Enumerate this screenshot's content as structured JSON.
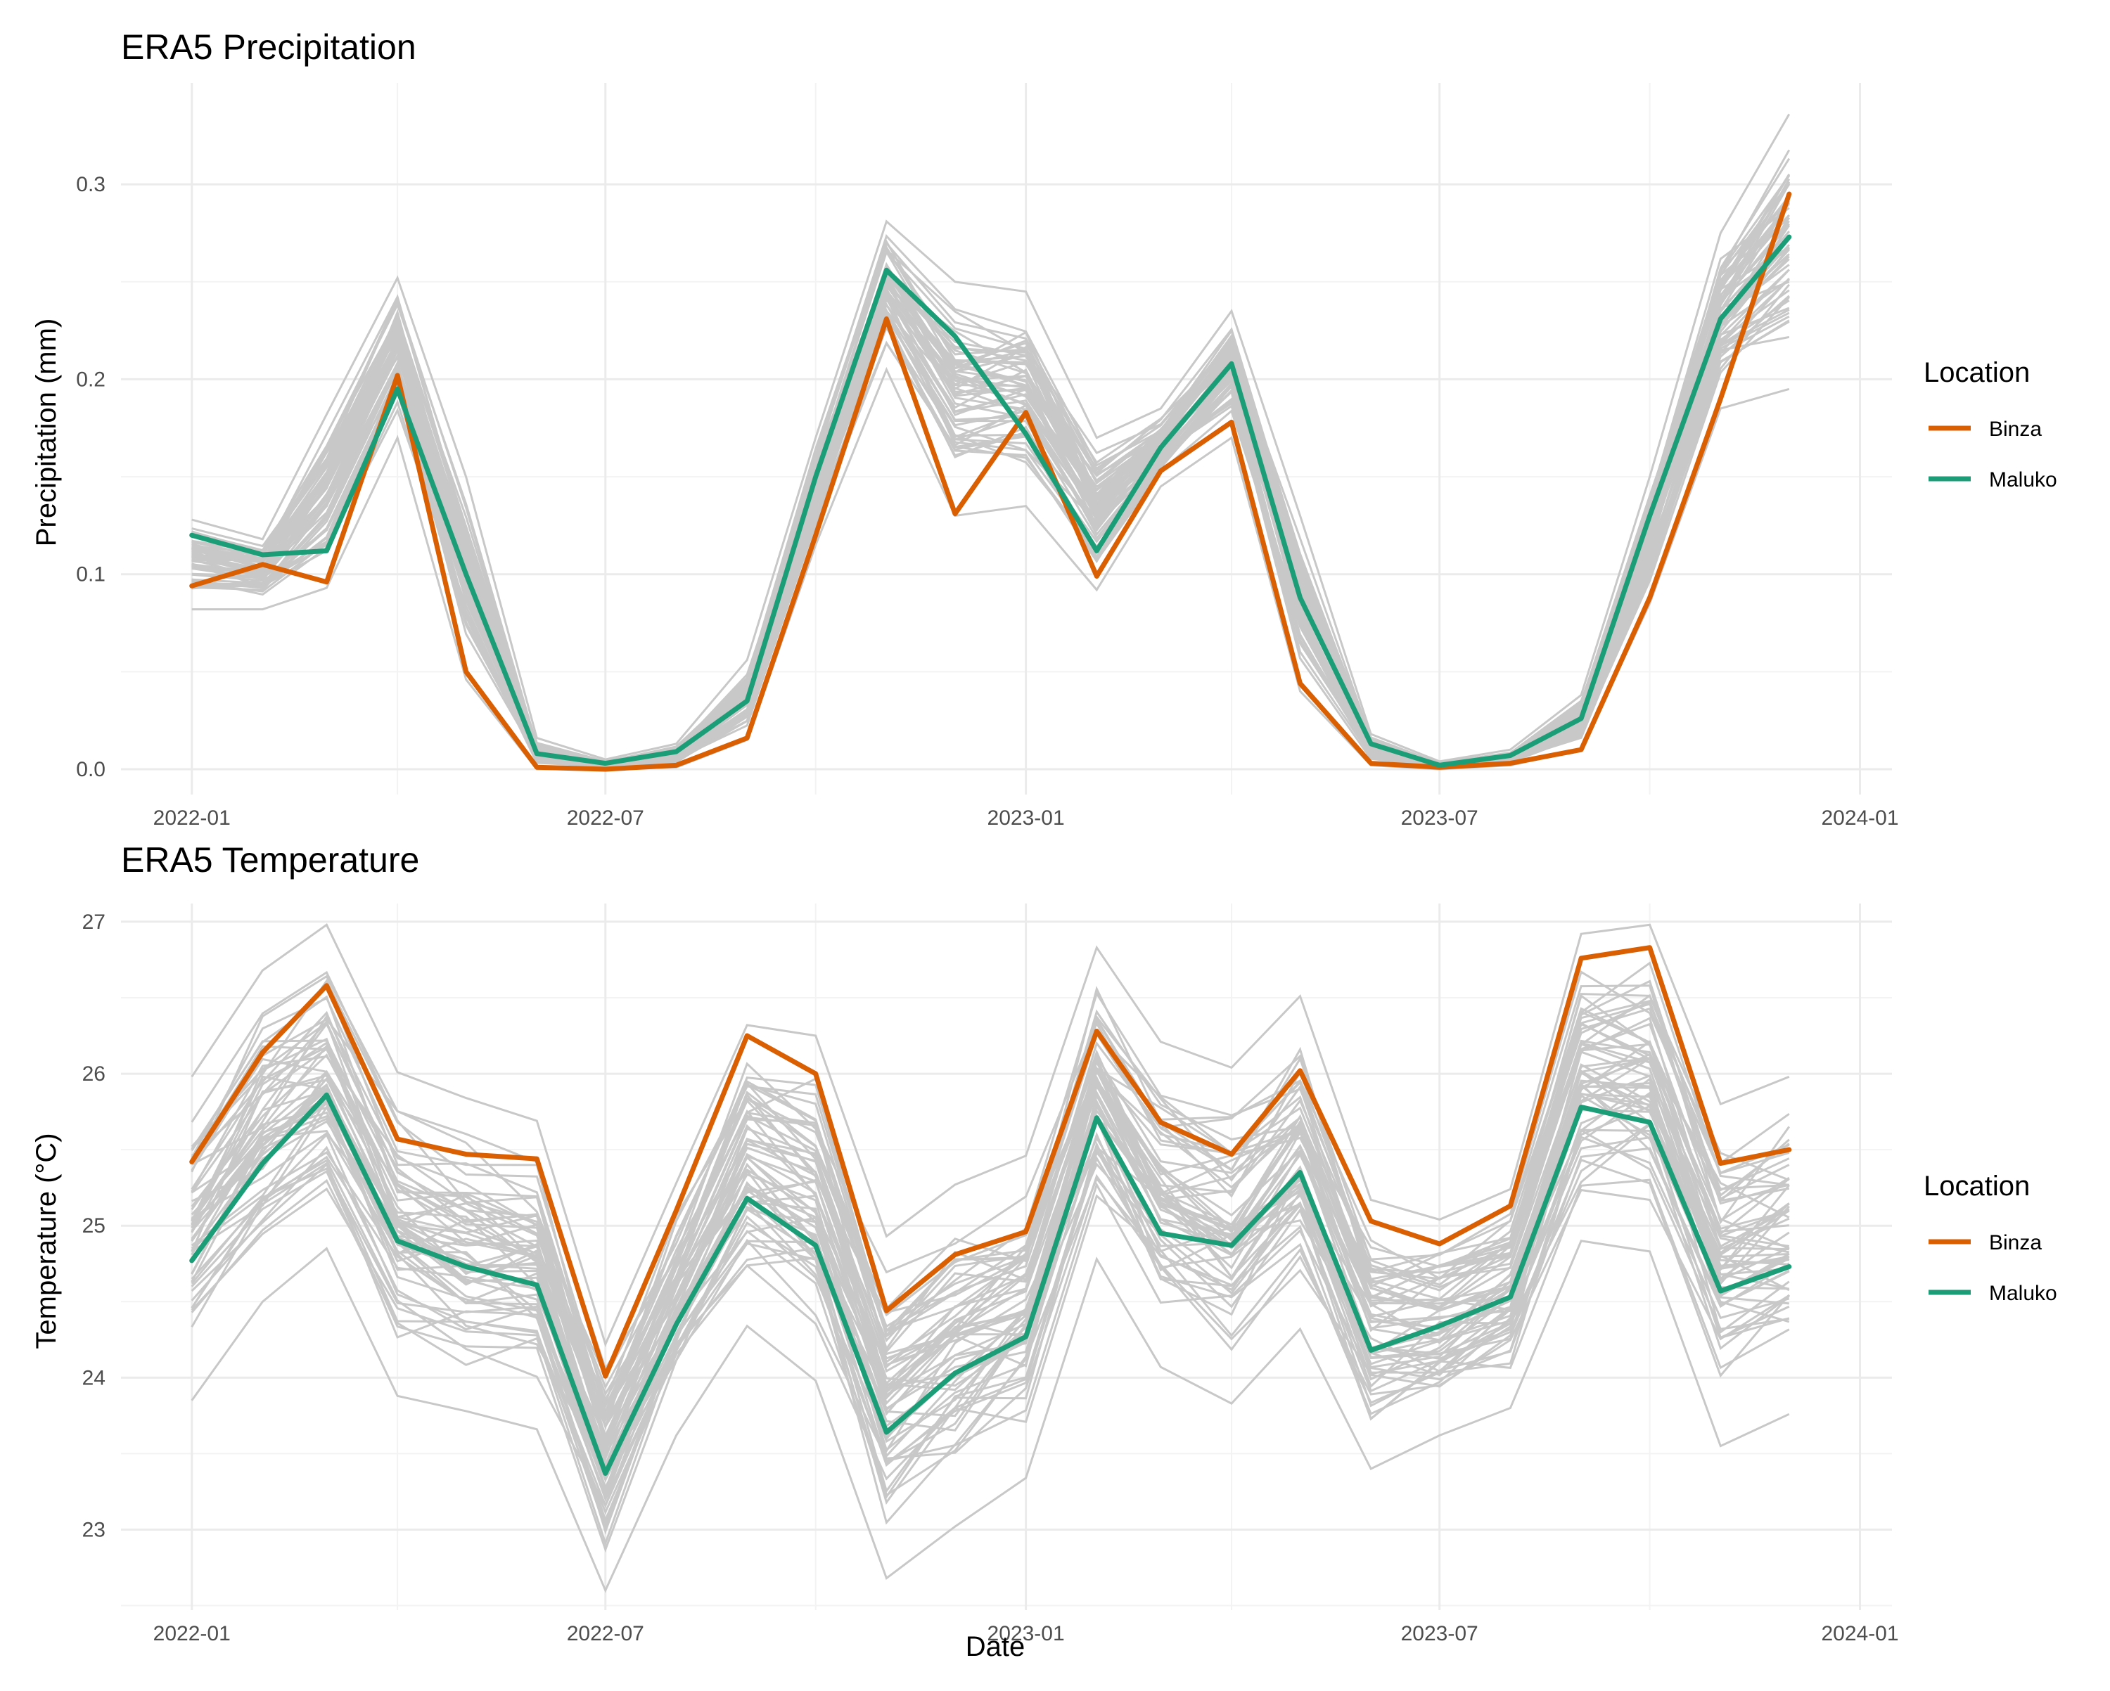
{
  "xlabel": "Date",
  "legend": {
    "title": "Location",
    "entries": [
      {
        "name": "Binza",
        "color": "#D95F02"
      },
      {
        "name": "Maluko",
        "color": "#1B9E77"
      }
    ]
  },
  "background_series_color": "#C8C8C8",
  "chart_data": [
    {
      "type": "line",
      "title": "ERA5 Precipitation",
      "xlabel": "",
      "ylabel": "Precipitation (mm)",
      "x": [
        "2022-01-01",
        "2022-02-01",
        "2022-03-01",
        "2022-04-01",
        "2022-05-01",
        "2022-06-01",
        "2022-07-01",
        "2022-08-01",
        "2022-09-01",
        "2022-10-01",
        "2022-11-01",
        "2022-12-01",
        "2023-01-01",
        "2023-02-01",
        "2023-03-01",
        "2023-04-01",
        "2023-05-01",
        "2023-06-01",
        "2023-07-01",
        "2023-08-01",
        "2023-09-01",
        "2023-10-01",
        "2023-11-01",
        "2023-12-01"
      ],
      "xlim": [
        "2021-12-01",
        "2024-01-15"
      ],
      "xticks": [
        "2022-01",
        "2022-07",
        "2023-01",
        "2023-07",
        "2024-01"
      ],
      "ylim": [
        -0.013,
        0.352
      ],
      "yticks": [
        0.0,
        0.1,
        0.2,
        0.3
      ],
      "ytick_labels": [
        "0.0",
        "0.1",
        "0.2",
        "0.3"
      ],
      "series": [
        {
          "name": "Binza",
          "values": [
            0.094,
            0.105,
            0.096,
            0.202,
            0.05,
            0.001,
            0.0,
            0.002,
            0.016,
            0.12,
            0.231,
            0.131,
            0.183,
            0.099,
            0.153,
            0.178,
            0.044,
            0.003,
            0.001,
            0.003,
            0.01,
            0.088,
            0.19,
            0.295
          ]
        },
        {
          "name": "Maluko",
          "values": [
            0.12,
            0.11,
            0.112,
            0.195,
            0.1,
            0.008,
            0.003,
            0.009,
            0.035,
            0.15,
            0.256,
            0.222,
            0.172,
            0.112,
            0.165,
            0.208,
            0.088,
            0.013,
            0.002,
            0.007,
            0.026,
            0.13,
            0.231,
            0.273
          ]
        }
      ],
      "background_series": {
        "low": [
          0.082,
          0.082,
          0.093,
          0.17,
          0.046,
          0.0,
          0.0,
          0.001,
          0.015,
          0.115,
          0.205,
          0.13,
          0.135,
          0.092,
          0.145,
          0.17,
          0.04,
          0.002,
          0.0,
          0.002,
          0.01,
          0.085,
          0.185,
          0.195
        ],
        "high": [
          0.128,
          0.118,
          0.182,
          0.252,
          0.15,
          0.016,
          0.005,
          0.013,
          0.056,
          0.17,
          0.281,
          0.25,
          0.245,
          0.17,
          0.185,
          0.235,
          0.13,
          0.018,
          0.004,
          0.01,
          0.038,
          0.15,
          0.275,
          0.336
        ]
      }
    },
    {
      "type": "line",
      "title": "ERA5 Temperature",
      "xlabel": "Date",
      "ylabel": "Temperature (°C)",
      "x": [
        "2022-01-01",
        "2022-02-01",
        "2022-03-01",
        "2022-04-01",
        "2022-05-01",
        "2022-06-01",
        "2022-07-01",
        "2022-08-01",
        "2022-09-01",
        "2022-10-01",
        "2022-11-01",
        "2022-12-01",
        "2023-01-01",
        "2023-02-01",
        "2023-03-01",
        "2023-04-01",
        "2023-05-01",
        "2023-06-01",
        "2023-07-01",
        "2023-08-01",
        "2023-09-01",
        "2023-10-01",
        "2023-11-01",
        "2023-12-01"
      ],
      "xlim": [
        "2021-12-01",
        "2024-01-15"
      ],
      "xticks": [
        "2022-01",
        "2022-07",
        "2023-01",
        "2023-07",
        "2024-01"
      ],
      "ylim": [
        22.47,
        27.12
      ],
      "yticks": [
        23,
        24,
        25,
        26,
        27
      ],
      "ytick_labels": [
        "23",
        "24",
        "25",
        "26",
        "27"
      ],
      "series": [
        {
          "name": "Binza",
          "values": [
            25.42,
            26.14,
            26.58,
            25.57,
            25.47,
            25.44,
            24.01,
            25.1,
            26.25,
            26.0,
            24.44,
            24.81,
            24.96,
            26.28,
            25.68,
            25.47,
            26.02,
            25.03,
            24.88,
            25.13,
            26.76,
            26.83,
            25.41,
            25.5
          ]
        },
        {
          "name": "Maluko",
          "values": [
            24.77,
            25.41,
            25.86,
            24.9,
            24.73,
            24.61,
            23.37,
            24.35,
            25.18,
            24.87,
            23.64,
            24.03,
            24.27,
            25.71,
            24.95,
            24.87,
            25.35,
            24.18,
            24.34,
            24.53,
            25.78,
            25.68,
            24.57,
            24.73
          ]
        }
      ],
      "background_series": {
        "low": [
          23.85,
          24.5,
          24.85,
          23.88,
          23.78,
          23.66,
          22.6,
          23.62,
          24.34,
          23.98,
          22.68,
          23.02,
          23.34,
          24.78,
          24.07,
          23.83,
          24.32,
          23.4,
          23.62,
          23.8,
          24.9,
          24.83,
          23.55,
          23.76
        ]
      },
      "background_series_high": [
        25.98,
        26.68,
        26.98,
        26.01,
        25.84,
        25.69,
        24.22,
        25.28,
        26.32,
        26.25,
        24.93,
        25.27,
        25.46,
        26.83,
        26.21,
        26.04,
        26.51,
        25.17,
        25.04,
        25.24,
        26.92,
        26.98,
        25.8,
        25.98
      ]
    }
  ]
}
